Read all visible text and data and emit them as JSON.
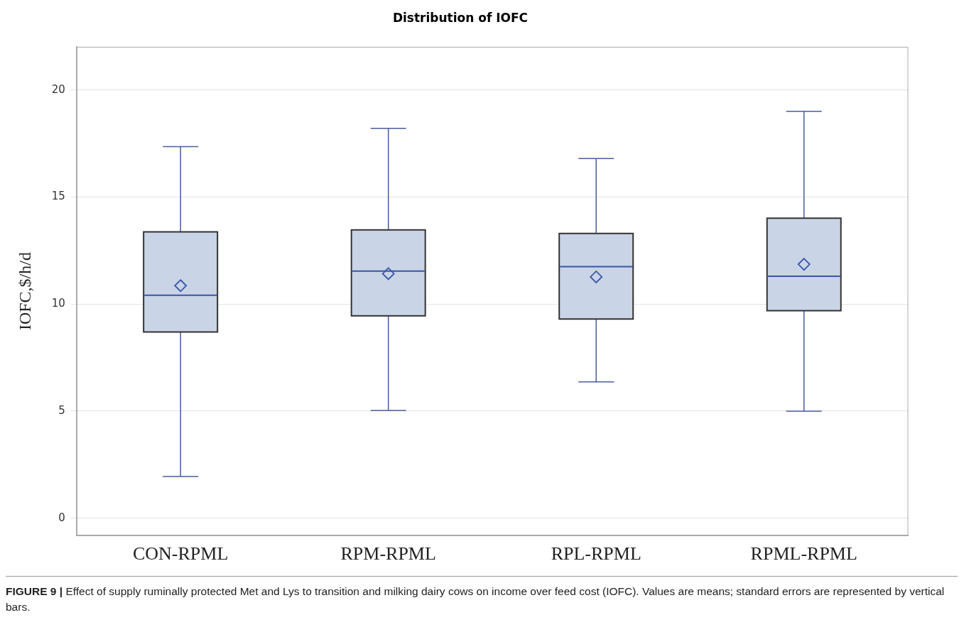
{
  "chart_data": {
    "type": "box",
    "title": "Distribution of IOFC",
    "ylabel": "IOFC,$/h/d",
    "categories": [
      "CON-RPML",
      "RPM-RPML",
      "RPL-RPML",
      "RPML-RPML"
    ],
    "series": [
      {
        "color": "#c9d4e6",
        "boxes": [
          {
            "low": 1.95,
            "q1": 8.7,
            "median": 10.41,
            "q3": 13.37,
            "high": 17.35,
            "mean": 10.86
          },
          {
            "low": 5.03,
            "q1": 9.45,
            "median": 11.54,
            "q3": 13.46,
            "high": 18.21,
            "mean": 11.42
          },
          {
            "low": 6.37,
            "q1": 9.3,
            "median": 11.75,
            "q3": 13.3,
            "high": 16.8,
            "mean": 11.27
          },
          {
            "low": 5.0,
            "q1": 9.69,
            "median": 11.3,
            "q3": 14.01,
            "high": 19.0,
            "mean": 11.86
          }
        ]
      }
    ],
    "ylim": [
      -0.8,
      22
    ],
    "yticks": [
      0,
      5,
      10,
      15,
      20
    ],
    "grid": "y",
    "marker": "diamond",
    "annotations": [
      "FIGURE 9 | Effect of supply ruminally protected Met and Lys to transition and milking dairy cows on income over feed cost (IOFC). Values are means; standard errors are represented by vertical bars."
    ]
  }
}
